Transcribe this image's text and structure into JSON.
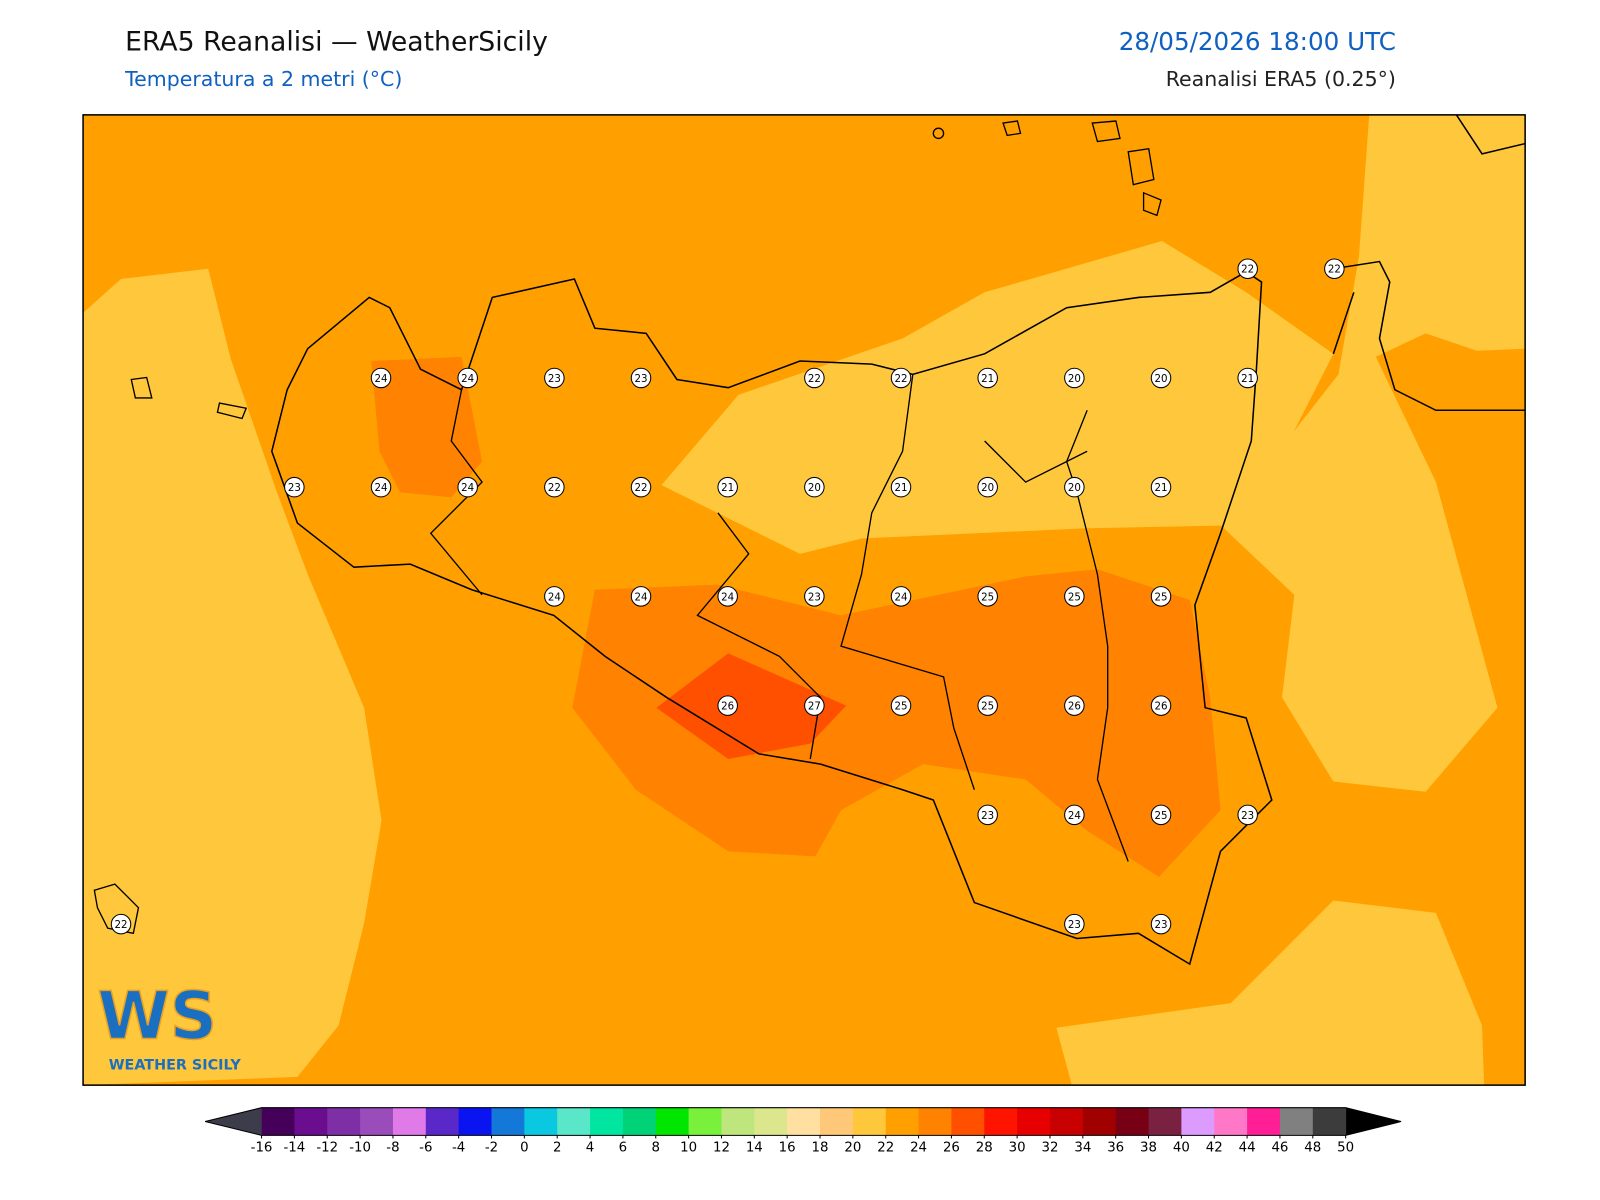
{
  "header": {
    "title": "ERA5 Reanalisi — WeatherSicily",
    "subtitle": "Temperatura a 2 metri (°C)",
    "datetime": "28/05/2026 18:00 UTC",
    "source": "Reanalisi ERA5 (0.25°)"
  },
  "stations": [
    22,
    22,
    24,
    24,
    23,
    23,
    22,
    22,
    21,
    20,
    20,
    21,
    23,
    24,
    24,
    22,
    22,
    21,
    20,
    21,
    20,
    20,
    21,
    24,
    24,
    24,
    23,
    24,
    25,
    25,
    25,
    26,
    27,
    25,
    25,
    26,
    26,
    23,
    24,
    25,
    23,
    22,
    23,
    23
  ],
  "colorbar": {
    "ticks": [
      -16,
      -14,
      -12,
      -10,
      -8,
      -6,
      -4,
      -2,
      0,
      2,
      4,
      6,
      8,
      10,
      12,
      14,
      16,
      18,
      20,
      22,
      24,
      26,
      28,
      30,
      32,
      34,
      36,
      38,
      40,
      42,
      44,
      46,
      48,
      50
    ],
    "colors": [
      "#45005a",
      "#6a0d8f",
      "#7f2fa6",
      "#9a4cba",
      "#e07ae8",
      "#5a28c8",
      "#0a14f0",
      "#1478d8",
      "#0ac8e0",
      "#5ae6c8",
      "#00e6a0",
      "#00d278",
      "#00e600",
      "#78f03c",
      "#bee67d",
      "#dce68c",
      "#ffe0a0",
      "#ffc878",
      "#ffc83c",
      "#ffa000",
      "#ff8200",
      "#ff5000",
      "#ff1400",
      "#e60000",
      "#c80000",
      "#a00000",
      "#780014",
      "#7a2040",
      "#dc9bff",
      "#ff78c8",
      "#ff1e96",
      "#808080",
      "#3c3c3c"
    ],
    "under_color": "#3c3c4a",
    "over_color": "#000000"
  },
  "logo": {
    "mark": "WS",
    "name": "WEATHER SICILY"
  }
}
